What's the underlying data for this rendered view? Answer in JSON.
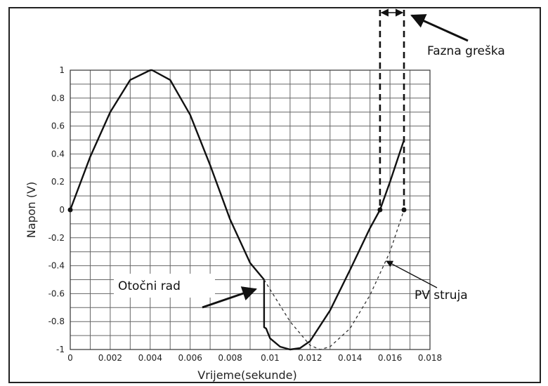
{
  "chart_data": {
    "type": "line",
    "xlabel": "Vrijeme(sekunde)",
    "ylabel": "Napon (V)",
    "xlim": [
      0,
      0.018
    ],
    "ylim": [
      -1,
      1
    ],
    "grid": true,
    "x_ticks": [
      "0",
      "0.002",
      "0.004",
      "0.006",
      "0.008",
      "0.01",
      "0.012",
      "0.014",
      "0.016",
      "0.018"
    ],
    "y_ticks": [
      "1",
      "0.8",
      "0.6",
      "0.4",
      "0.2",
      "0",
      "-0.2",
      "-0.4",
      "-0.6",
      "-0.8",
      "-1"
    ],
    "series": [
      {
        "style": "solid",
        "color": "#111111",
        "x": [
          0,
          0.001,
          0.002,
          0.003,
          0.004,
          0.0041,
          0.005,
          0.006,
          0.007,
          0.008,
          0.009,
          0.0097,
          0.0097,
          0.0098,
          0.01,
          0.0105,
          0.011,
          0.0115,
          0.012,
          0.013,
          0.014,
          0.015,
          0.0155,
          0.016,
          0.0167
        ],
        "y": [
          0,
          0.38,
          0.7,
          0.93,
          1.0,
          1.0,
          0.93,
          0.68,
          0.32,
          -0.07,
          -0.38,
          -0.5,
          -0.84,
          -0.85,
          -0.92,
          -0.98,
          -1.0,
          -0.99,
          -0.94,
          -0.72,
          -0.43,
          -0.13,
          0.0,
          0.2,
          0.5
        ]
      },
      {
        "style": "dashed",
        "color": "#333333",
        "x": [
          0.0097,
          0.01,
          0.011,
          0.012,
          0.0125,
          0.013,
          0.014,
          0.015,
          0.016,
          0.0167
        ],
        "y": [
          -0.5,
          -0.57,
          -0.8,
          -0.97,
          -1.0,
          -0.98,
          -0.85,
          -0.61,
          -0.3,
          0.0
        ]
      }
    ],
    "markers": [
      {
        "x": 0,
        "y": 0
      },
      {
        "x": 0.0155,
        "y": 0
      },
      {
        "x": 0.0167,
        "y": 0
      }
    ],
    "phase_lines_x": [
      0.0155,
      0.0167
    ],
    "annotations": {
      "islanding": "Otočni rad",
      "pv_current": "PV struja",
      "phase_error": "Fazna greška"
    }
  }
}
